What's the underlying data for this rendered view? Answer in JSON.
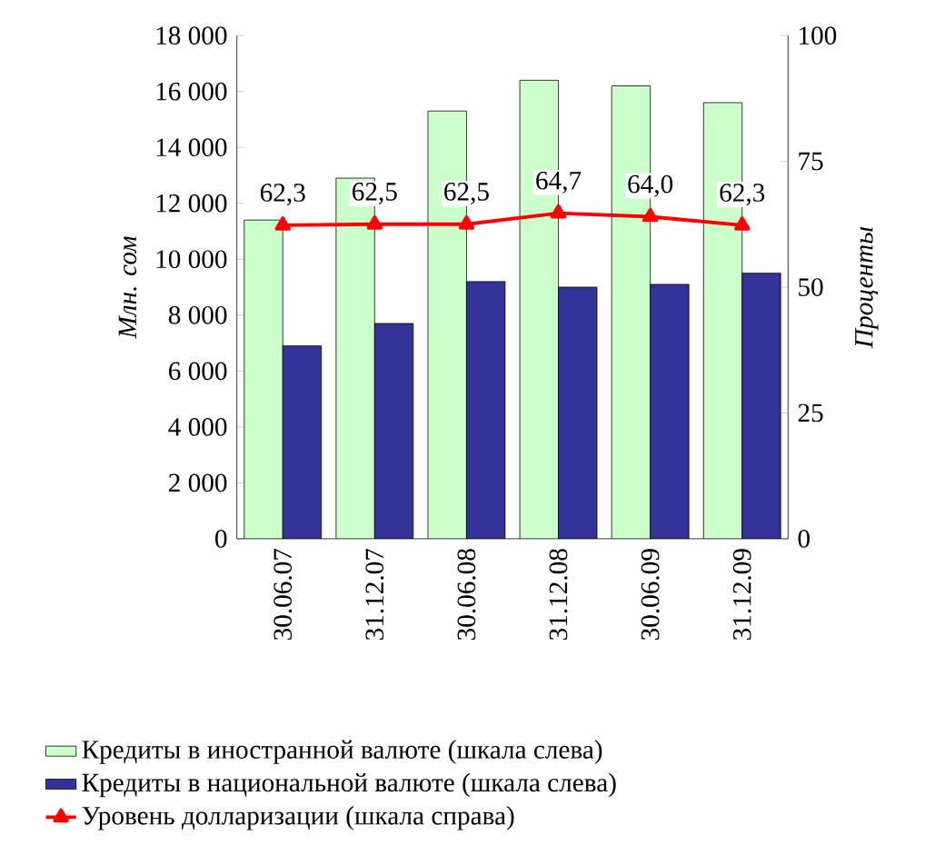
{
  "chart_data": {
    "type": "bar",
    "categories": [
      "30.06.07",
      "31.12.07",
      "30.06.08",
      "31.12.08",
      "30.06.09",
      "31.12.09"
    ],
    "ylabel": "Млн. сом",
    "y2label": "Проценты",
    "ylim": [
      0,
      18000
    ],
    "yticks": [
      0,
      {
        "value": 2000,
        "label": "2 000"
      },
      {
        "value": 4000,
        "label": "4 000"
      },
      {
        "value": 6000,
        "label": "6 000"
      },
      {
        "value": 8000,
        "label": "8 000"
      },
      {
        "value": 10000,
        "label": "10 000"
      },
      {
        "value": 12000,
        "label": "12 000"
      },
      {
        "value": 14000,
        "label": "14 000"
      },
      {
        "value": 16000,
        "label": "16 000"
      },
      {
        "value": 18000,
        "label": "18 000"
      }
    ],
    "y2lim": [
      0,
      100
    ],
    "y2ticks": [
      0,
      25,
      50,
      75,
      100
    ],
    "legend": "bottom",
    "grid": false,
    "series": [
      {
        "name": "Кредиты в иностранной валюте (шкала слева)",
        "color": "#ccffcc",
        "values": [
          11400,
          12900,
          15300,
          16400,
          16200,
          15600
        ]
      },
      {
        "name": "Кредиты в национальной валюте (шкала слева)",
        "color": "#333399",
        "values": [
          6900,
          7700,
          9200,
          9000,
          9100,
          9500
        ]
      },
      {
        "name": "Уровень долларизации (шкала справа)",
        "type": "line",
        "axis": "y2",
        "color": "#ff0000",
        "marker": "triangle",
        "line_style": "solid",
        "values": [
          62.3,
          62.5,
          62.5,
          64.7,
          64.0,
          62.3
        ],
        "value_labels": [
          "62,3",
          "62,5",
          "62,5",
          "64,7",
          "64,0",
          "62,3"
        ]
      }
    ]
  }
}
